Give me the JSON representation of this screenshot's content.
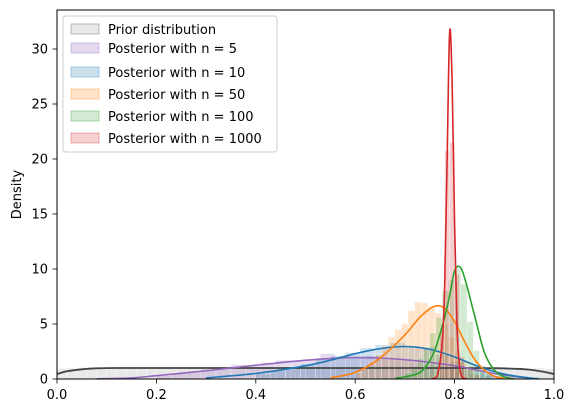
{
  "chart_data": {
    "type": "area",
    "title": "",
    "xlabel": "",
    "ylabel": "Density",
    "xlim": [
      0.0,
      1.0
    ],
    "ylim": [
      0,
      33.5
    ],
    "xticks": [
      "0.0",
      "0.2",
      "0.4",
      "0.6",
      "0.8",
      "1.0"
    ],
    "yticks": [
      "0",
      "5",
      "10",
      "15",
      "20",
      "25",
      "30"
    ],
    "grid": false,
    "legend_position": "upper-left",
    "series": [
      {
        "name": "Prior distribution",
        "legend_label": "Prior distribution",
        "color": "#444444",
        "alpha": 0.12,
        "x": [
          0.0,
          0.02,
          0.05,
          0.08,
          0.12,
          0.2,
          0.4,
          0.6,
          0.8,
          0.88,
          0.92,
          0.95,
          0.98,
          1.0
        ],
        "y": [
          0.45,
          0.7,
          0.88,
          0.97,
          1.0,
          1.0,
          1.0,
          1.0,
          1.0,
          0.98,
          0.93,
          0.85,
          0.65,
          0.45
        ],
        "bars": {
          "start": 0.0,
          "width": 0.02,
          "values": [
            0.95,
            0.98,
            1.02,
            0.97,
            1.0,
            1.03,
            0.96,
            0.99,
            1.01,
            1.0,
            0.98,
            1.02,
            0.97,
            1.0,
            1.03,
            0.99,
            0.96,
            1.01,
            1.0,
            0.98,
            1.02,
            1.0,
            0.97,
            1.01,
            0.99,
            1.03,
            0.98,
            1.0,
            1.0,
            0.97,
            1.02,
            0.99,
            1.01,
            0.98,
            1.0,
            1.03,
            0.97,
            1.0,
            0.99,
            1.02,
            1.0,
            0.98,
            1.01,
            0.97,
            1.0,
            1.02,
            0.99,
            0.96,
            0.98,
            0.9
          ]
        }
      },
      {
        "name": "Posterior n=5",
        "legend_label": "Posterior with n = 5",
        "color": "#9467bd",
        "alpha": 0.25,
        "x": [
          0.08,
          0.15,
          0.2,
          0.3,
          0.4,
          0.5,
          0.6,
          0.7,
          0.8,
          0.85,
          0.9,
          0.95
        ],
        "y": [
          0.02,
          0.1,
          0.3,
          0.75,
          1.25,
          1.7,
          1.95,
          1.75,
          1.2,
          0.75,
          0.35,
          0.08
        ],
        "bars": {
          "start": 0.2,
          "width": 0.03,
          "values": [
            0.3,
            0.5,
            0.6,
            0.9,
            1.0,
            1.3,
            1.2,
            1.5,
            1.7,
            1.6,
            1.8,
            2.3,
            2.0,
            1.9,
            2.1,
            1.8,
            1.7,
            1.5,
            1.3,
            1.0,
            0.8,
            0.5,
            0.3
          ]
        }
      },
      {
        "name": "Posterior n=10",
        "legend_label": "Posterior with n = 10",
        "color": "#1f77b4",
        "alpha": 0.22,
        "x": [
          0.3,
          0.4,
          0.5,
          0.55,
          0.6,
          0.65,
          0.7,
          0.75,
          0.8,
          0.85,
          0.9,
          0.95,
          0.97
        ],
        "y": [
          0.1,
          0.5,
          1.2,
          1.7,
          2.3,
          2.75,
          2.95,
          2.7,
          2.0,
          1.1,
          0.45,
          0.1,
          0.02
        ],
        "bars": {
          "start": 0.4,
          "width": 0.03,
          "values": [
            0.5,
            0.8,
            1.1,
            1.4,
            1.9,
            2.1,
            2.4,
            2.8,
            3.1,
            3.3,
            3.0,
            2.9,
            2.2,
            1.6,
            1.0,
            0.6,
            0.3,
            0.15
          ]
        }
      },
      {
        "name": "Posterior n=50",
        "legend_label": "Posterior with n = 50",
        "color": "#ff7f0e",
        "alpha": 0.22,
        "x": [
          0.55,
          0.6,
          0.65,
          0.7,
          0.73,
          0.76,
          0.78,
          0.8,
          0.82,
          0.84,
          0.86,
          0.88,
          0.9
        ],
        "y": [
          0.1,
          0.6,
          1.9,
          4.0,
          5.6,
          6.6,
          6.4,
          5.2,
          3.4,
          1.8,
          0.8,
          0.25,
          0.05
        ],
        "bars": {
          "start": 0.6,
          "width": 0.0133,
          "values": [
            0.6,
            1.0,
            1.6,
            2.2,
            3.0,
            3.8,
            4.5,
            5.0,
            6.2,
            7.0,
            6.9,
            6.6,
            6.0,
            5.0,
            3.8,
            2.6,
            1.6,
            0.9,
            0.4
          ]
        }
      },
      {
        "name": "Posterior n=100",
        "legend_label": "Posterior with n = 100",
        "color": "#2ca02c",
        "alpha": 0.22,
        "x": [
          0.68,
          0.72,
          0.74,
          0.76,
          0.78,
          0.79,
          0.8,
          0.81,
          0.82,
          0.84,
          0.86,
          0.88,
          0.9,
          0.92
        ],
        "y": [
          0.05,
          0.4,
          1.0,
          2.6,
          5.6,
          7.6,
          9.8,
          10.2,
          9.2,
          5.8,
          2.4,
          0.8,
          0.2,
          0.02
        ],
        "bars": {
          "start": 0.7,
          "width": 0.0125,
          "values": [
            0.6,
            1.0,
            1.9,
            2.8,
            4.2,
            5.6,
            8.0,
            9.0,
            10.0,
            8.6,
            5.2,
            2.6,
            1.2,
            0.5
          ]
        }
      },
      {
        "name": "Posterior n=1000",
        "legend_label": "Posterior with n = 1000",
        "color": "#d62728",
        "alpha": 0.22,
        "x": [
          0.755,
          0.765,
          0.775,
          0.78,
          0.785,
          0.79,
          0.795,
          0.8,
          0.805,
          0.81,
          0.815,
          0.825
        ],
        "y": [
          0.02,
          0.3,
          3.2,
          8.5,
          20.0,
          31.5,
          27.0,
          14.0,
          4.5,
          1.2,
          0.2,
          0.02
        ],
        "bars": {
          "start": 0.77,
          "width": 0.01,
          "values": [
            4.5,
            20.7,
            21.5,
            9.5,
            2.0
          ]
        }
      }
    ]
  }
}
